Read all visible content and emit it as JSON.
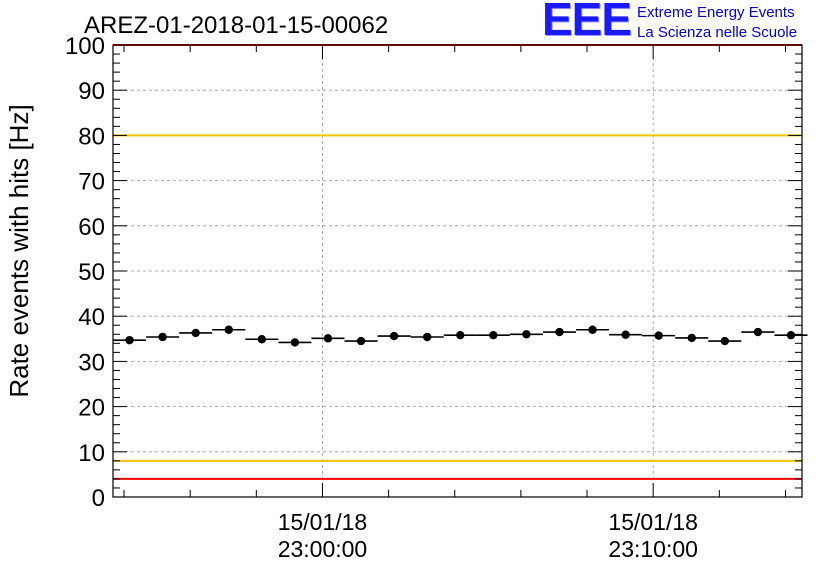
{
  "chart_data": {
    "type": "scatter",
    "title": "AREZ-01-2018-01-15-00062",
    "ylabel": "Rate events with hits [Hz]",
    "xlabel": "",
    "ylim": [
      0,
      100
    ],
    "yticks": [
      0,
      10,
      20,
      30,
      40,
      50,
      60,
      70,
      80,
      90,
      100
    ],
    "xlim": [
      "22:53:40",
      "23:14:30"
    ],
    "xticks": [
      {
        "date": "15/01/18",
        "time": "23:00:00"
      },
      {
        "date": "15/01/18",
        "time": "23:10:00"
      }
    ],
    "grid": true,
    "series": [
      {
        "x": [
          "22:54:10",
          "22:55:10",
          "22:56:10",
          "22:57:10",
          "22:58:10",
          "22:59:10",
          "23:00:10",
          "23:01:10",
          "23:02:10",
          "23:03:10",
          "23:04:10",
          "23:05:10",
          "23:06:10",
          "23:07:10",
          "23:08:10",
          "23:09:10",
          "23:10:10",
          "23:11:10",
          "23:12:10",
          "23:13:10",
          "23:14:10"
        ],
        "y": [
          34.7,
          35.4,
          36.3,
          37.0,
          34.9,
          34.2,
          35.1,
          34.5,
          35.6,
          35.4,
          35.8,
          35.8,
          36.0,
          36.5,
          37.0,
          35.9,
          35.7,
          35.2,
          34.5,
          36.5,
          35.8
        ]
      }
    ],
    "reference_lines": [
      {
        "y": 100,
        "color": "#ff0000"
      },
      {
        "y": 80,
        "color": "#f2c200"
      },
      {
        "y": 8,
        "color": "#f2c200"
      },
      {
        "y": 4,
        "color": "#ff0000"
      }
    ]
  },
  "logo": {
    "mark": "EEE",
    "line1": "Extreme Energy Events",
    "line2": "La Scienza nelle Scuole"
  }
}
